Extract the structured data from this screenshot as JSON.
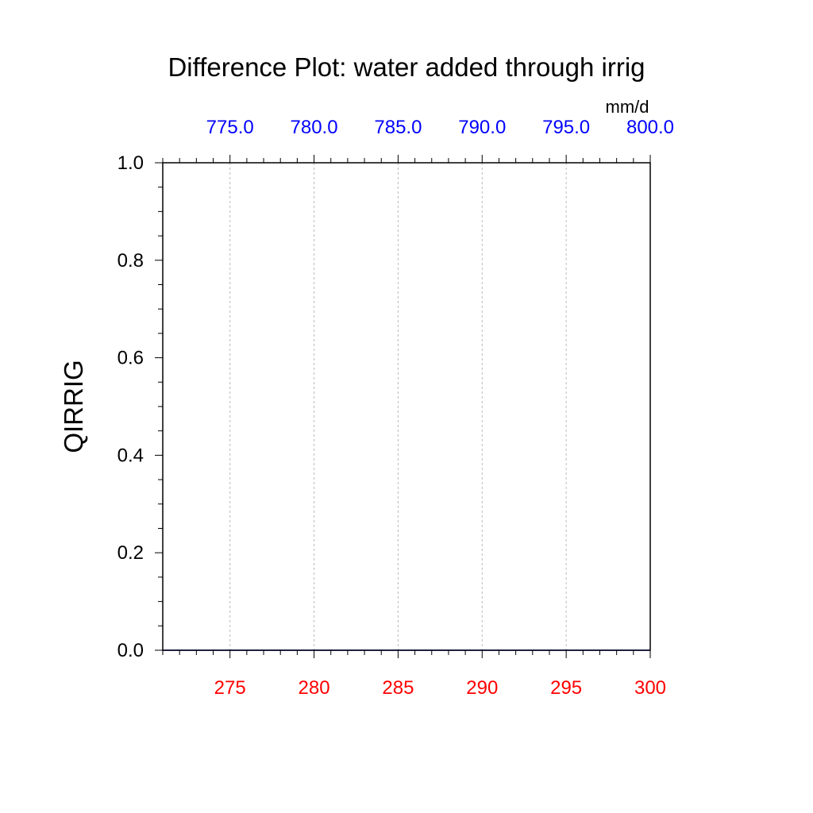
{
  "chart_data": {
    "type": "line",
    "title": "Difference Plot: water added through irrig",
    "ylabel": "QIRRIG",
    "units": "mm/d",
    "ylim": [
      0.0,
      1.0
    ],
    "xlim": [
      271,
      300
    ],
    "yticks": [
      "0.0",
      "0.2",
      "0.4",
      "0.6",
      "0.8",
      "1.0"
    ],
    "ytick_values": [
      0.0,
      0.2,
      0.4,
      0.6,
      0.8,
      1.0
    ],
    "xticks_bottom": [
      "275",
      "280",
      "285",
      "290",
      "295",
      "300"
    ],
    "xtick_values_bottom": [
      275,
      280,
      285,
      290,
      295,
      300
    ],
    "xticks_top": [
      "775.0",
      "780.0",
      "785.0",
      "790.0",
      "795.0",
      "800.0"
    ],
    "grid": "vertical-dashed",
    "bottom_axis_color": "#ff0000",
    "top_axis_color": "#0000ff",
    "series": [
      {
        "color": "#0000ff",
        "x": [
          271,
          300
        ],
        "y": [
          0.0,
          0.0
        ]
      }
    ]
  }
}
